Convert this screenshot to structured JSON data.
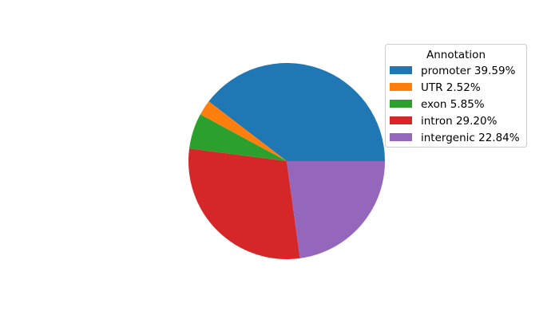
{
  "chart_data": {
    "type": "pie",
    "categories": [
      "promoter",
      "UTR",
      "exon",
      "intron",
      "intergenic"
    ],
    "values": [
      39.59,
      2.52,
      5.85,
      29.2,
      22.84
    ],
    "colors": [
      "#1f77b4",
      "#ff7f0e",
      "#2ca02c",
      "#d62728",
      "#9467bd"
    ],
    "start_angle": 0,
    "direction": "counterclockwise",
    "legend": {
      "title": "Annotation",
      "placement": "upper-right",
      "labels": [
        "promoter 39.59%",
        "UTR 2.52%",
        "exon 5.85%",
        "intron 29.20%",
        "intergenic 22.84%"
      ]
    }
  }
}
